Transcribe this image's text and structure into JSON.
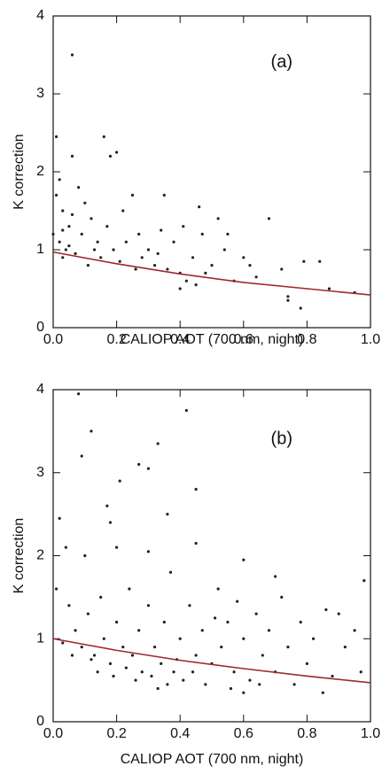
{
  "chart_data": [
    {
      "type": "scatter",
      "annotation": "(a)",
      "xlabel": "CALIOP AOT (700 nm, night)",
      "ylabel": "K correction",
      "xlim": [
        0,
        1
      ],
      "ylim": [
        0,
        4
      ],
      "xticks": [
        {
          "value": 0,
          "label": "0.0"
        },
        {
          "value": 0.2,
          "label": "0.2"
        },
        {
          "value": 0.4,
          "label": "0.4"
        },
        {
          "value": 0.6,
          "label": "0.6"
        },
        {
          "value": 0.8,
          "label": "0.8"
        },
        {
          "value": 1,
          "label": "1.0"
        }
      ],
      "yticks": [
        0,
        1,
        2,
        3,
        4
      ],
      "series": [
        {
          "type": "scatter",
          "color": "#222222",
          "x": [
            0.06,
            0.01,
            0.16,
            0.18,
            0.2,
            0.06,
            0.02,
            0.08,
            0.1,
            0.03,
            0.05,
            0.0,
            0.02,
            0.04,
            0.07,
            0.09,
            0.12,
            0.14,
            0.15,
            0.17,
            0.19,
            0.21,
            0.22,
            0.25,
            0.27,
            0.28,
            0.3,
            0.32,
            0.34,
            0.35,
            0.36,
            0.38,
            0.4,
            0.41,
            0.42,
            0.44,
            0.46,
            0.47,
            0.48,
            0.5,
            0.52,
            0.54,
            0.55,
            0.57,
            0.6,
            0.62,
            0.64,
            0.68,
            0.72,
            0.74,
            0.74,
            0.78,
            0.79,
            0.84,
            0.87,
            0.95,
            0.01,
            0.03,
            0.06,
            0.11,
            0.13,
            0.23,
            0.26,
            0.33,
            0.4,
            0.45,
            0.03,
            0.05
          ],
          "values": [
            3.5,
            2.45,
            2.45,
            2.2,
            2.25,
            2.2,
            1.9,
            1.8,
            1.6,
            1.5,
            1.3,
            1.2,
            1.1,
            1.0,
            0.95,
            1.2,
            1.4,
            1.1,
            0.9,
            1.3,
            1.0,
            0.85,
            1.5,
            1.7,
            1.2,
            0.9,
            1.0,
            0.8,
            1.25,
            1.7,
            0.75,
            1.1,
            0.7,
            1.3,
            0.6,
            0.9,
            1.55,
            1.2,
            0.7,
            0.8,
            1.4,
            1.0,
            1.2,
            0.6,
            0.9,
            0.8,
            0.65,
            1.4,
            0.75,
            0.4,
            0.35,
            0.25,
            0.85,
            0.85,
            0.5,
            0.45,
            1.7,
            0.9,
            1.45,
            0.8,
            1.0,
            1.1,
            0.75,
            0.95,
            0.5,
            0.55,
            1.25,
            1.05
          ]
        },
        {
          "type": "line",
          "color": "#a0282d",
          "x": [
            0,
            0.2,
            0.4,
            0.6,
            0.8,
            1.0
          ],
          "values": [
            0.97,
            0.82,
            0.69,
            0.58,
            0.5,
            0.42
          ]
        }
      ]
    },
    {
      "type": "scatter",
      "annotation": "(b)",
      "xlabel": "CALIOP AOT (700 nm, night)",
      "ylabel": "K correction",
      "xlim": [
        0,
        1
      ],
      "ylim": [
        0,
        4
      ],
      "xticks": [
        {
          "value": 0,
          "label": "0.0"
        },
        {
          "value": 0.2,
          "label": "0.2"
        },
        {
          "value": 0.4,
          "label": "0.4"
        },
        {
          "value": 0.6,
          "label": "0.6"
        },
        {
          "value": 0.8,
          "label": "0.8"
        },
        {
          "value": 1,
          "label": "1.0"
        }
      ],
      "yticks": [
        0,
        1,
        2,
        3,
        4
      ],
      "series": [
        {
          "type": "scatter",
          "color": "#222222",
          "x": [
            0.08,
            0.12,
            0.09,
            0.33,
            0.27,
            0.3,
            0.42,
            0.45,
            0.21,
            0.17,
            0.18,
            0.02,
            0.04,
            0.1,
            0.2,
            0.3,
            0.36,
            0.45,
            0.6,
            0.7,
            0.98,
            0.01,
            0.05,
            0.07,
            0.09,
            0.11,
            0.13,
            0.15,
            0.16,
            0.18,
            0.2,
            0.22,
            0.24,
            0.25,
            0.27,
            0.28,
            0.3,
            0.32,
            0.34,
            0.35,
            0.37,
            0.38,
            0.4,
            0.41,
            0.43,
            0.45,
            0.47,
            0.5,
            0.52,
            0.53,
            0.55,
            0.57,
            0.58,
            0.6,
            0.62,
            0.64,
            0.66,
            0.68,
            0.7,
            0.72,
            0.74,
            0.76,
            0.78,
            0.8,
            0.82,
            0.85,
            0.86,
            0.88,
            0.9,
            0.92,
            0.95,
            0.97,
            0.03,
            0.06,
            0.12,
            0.14,
            0.19,
            0.23,
            0.26,
            0.31,
            0.33,
            0.36,
            0.39,
            0.44,
            0.48,
            0.51,
            0.56,
            0.6,
            0.65
          ],
          "values": [
            3.95,
            3.5,
            3.2,
            3.35,
            3.1,
            3.05,
            3.75,
            2.8,
            2.9,
            2.6,
            2.4,
            2.45,
            2.1,
            2.0,
            2.1,
            2.05,
            2.5,
            2.15,
            1.95,
            1.75,
            1.7,
            1.6,
            1.4,
            1.1,
            0.9,
            1.3,
            0.8,
            1.5,
            1.0,
            0.7,
            1.2,
            0.9,
            1.6,
            0.8,
            1.1,
            0.6,
            1.4,
            0.9,
            0.7,
            1.2,
            1.8,
            0.6,
            1.0,
            0.5,
            1.4,
            0.8,
            1.1,
            0.7,
            1.6,
            0.9,
            1.2,
            0.6,
            1.45,
            1.0,
            0.5,
            1.3,
            0.8,
            1.1,
            0.6,
            1.5,
            0.9,
            0.45,
            1.2,
            0.7,
            1.0,
            0.35,
            1.35,
            0.55,
            1.3,
            0.9,
            1.1,
            0.6,
            0.95,
            0.8,
            0.75,
            0.6,
            0.55,
            0.65,
            0.5,
            0.55,
            0.4,
            0.45,
            0.75,
            0.6,
            0.45,
            1.25,
            0.4,
            0.35,
            0.45
          ]
        },
        {
          "type": "line",
          "color": "#a0282d",
          "x": [
            0,
            0.2,
            0.4,
            0.6,
            0.8,
            1.0
          ],
          "values": [
            1.0,
            0.86,
            0.74,
            0.64,
            0.55,
            0.47
          ]
        }
      ]
    }
  ]
}
